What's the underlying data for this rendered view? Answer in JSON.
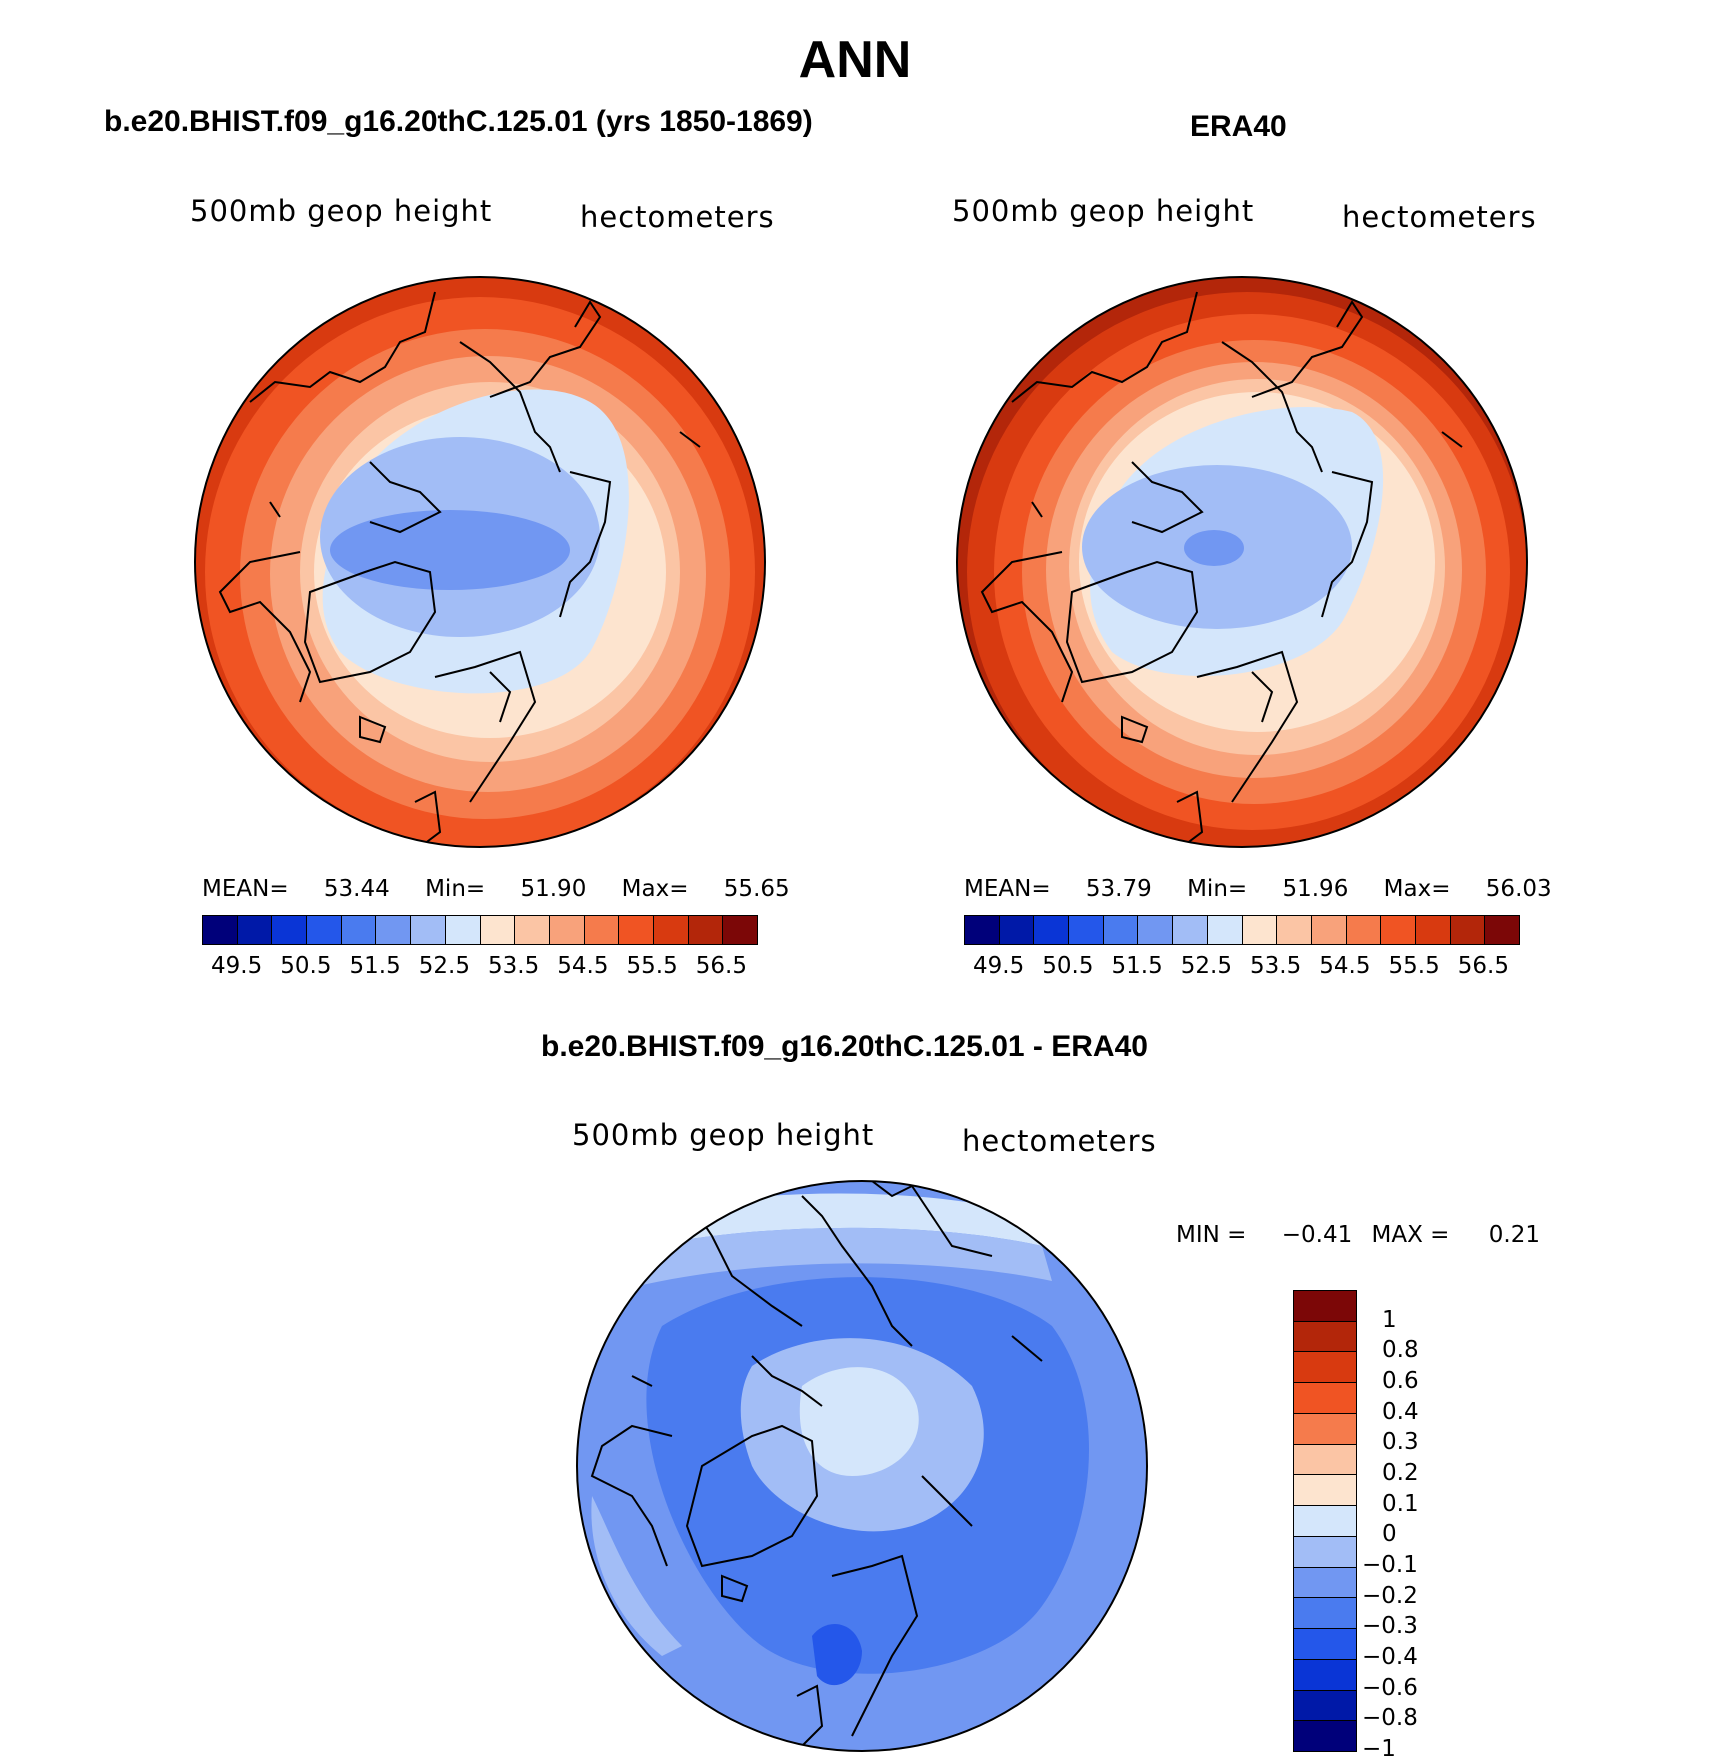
{
  "figure_title": "ANN",
  "panels": {
    "model": {
      "title": "b.e20.BHIST.f09_g16.20thC.125.01 (yrs 1850-1869)",
      "left_label": "500mb geop height",
      "right_label": "hectometers",
      "stats": {
        "mean_label": "MEAN=",
        "mean": "53.44",
        "min_label": "Min=",
        "min": "51.90",
        "max_label": "Max=",
        "max": "55.65"
      }
    },
    "obs": {
      "title": "ERA40",
      "left_label": "500mb geop height",
      "right_label": "hectometers",
      "stats": {
        "mean_label": "MEAN=",
        "mean": "53.79",
        "min_label": "Min=",
        "min": "51.96",
        "max_label": "Max=",
        "max": "56.03"
      }
    },
    "diff": {
      "title": "b.e20.BHIST.f09_g16.20thC.125.01 - ERA40",
      "left_label": "500mb geop height",
      "right_label": "hectometers",
      "stats": {
        "min_label": "MIN =",
        "min": "−0.41",
        "max_label": "MAX =",
        "max": "0.21"
      }
    }
  },
  "colorbars": {
    "abs": {
      "colors": [
        "#00007a",
        "#0019a8",
        "#0a35d6",
        "#2457ea",
        "#4a7bef",
        "#7197f2",
        "#a2bdf6",
        "#d4e6fb",
        "#fde4cf",
        "#fbc5a5",
        "#f8a27b",
        "#f57b4c",
        "#f05423",
        "#d83a10",
        "#b3260a",
        "#7c0707"
      ],
      "tick_labels": [
        "49.5",
        "50.5",
        "51.5",
        "52.5",
        "53.5",
        "54.5",
        "55.5",
        "56.5"
      ]
    },
    "diff": {
      "colors": [
        "#7c0707",
        "#b3260a",
        "#d83a10",
        "#f05423",
        "#f57b4c",
        "#fbc5a5",
        "#fde4cf",
        "#d4e6fb",
        "#a2bdf6",
        "#7197f2",
        "#4a7bef",
        "#2457ea",
        "#0a35d6",
        "#0019a8",
        "#00007a"
      ],
      "tick_labels": [
        "1",
        "0.8",
        "0.6",
        "0.4",
        "0.3",
        "0.2",
        "0.1",
        "0",
        "−0.1",
        "−0.2",
        "−0.3",
        "−0.4",
        "−0.6",
        "−0.8",
        "−1"
      ]
    }
  },
  "map_data": {
    "projection": "north-polar-stereographic",
    "field": "500mb geopotential height",
    "units": "hectometers",
    "contour_levels_abs": [
      49.5,
      50.0,
      50.5,
      51.0,
      51.5,
      52.0,
      52.5,
      53.0,
      53.5,
      54.0,
      54.5,
      55.0,
      55.5,
      56.0,
      56.5
    ],
    "contour_levels_diff": [
      -1,
      -0.8,
      -0.6,
      -0.4,
      -0.3,
      -0.2,
      -0.1,
      0,
      0.1,
      0.2,
      0.3,
      0.4,
      0.6,
      0.8,
      1
    ]
  }
}
